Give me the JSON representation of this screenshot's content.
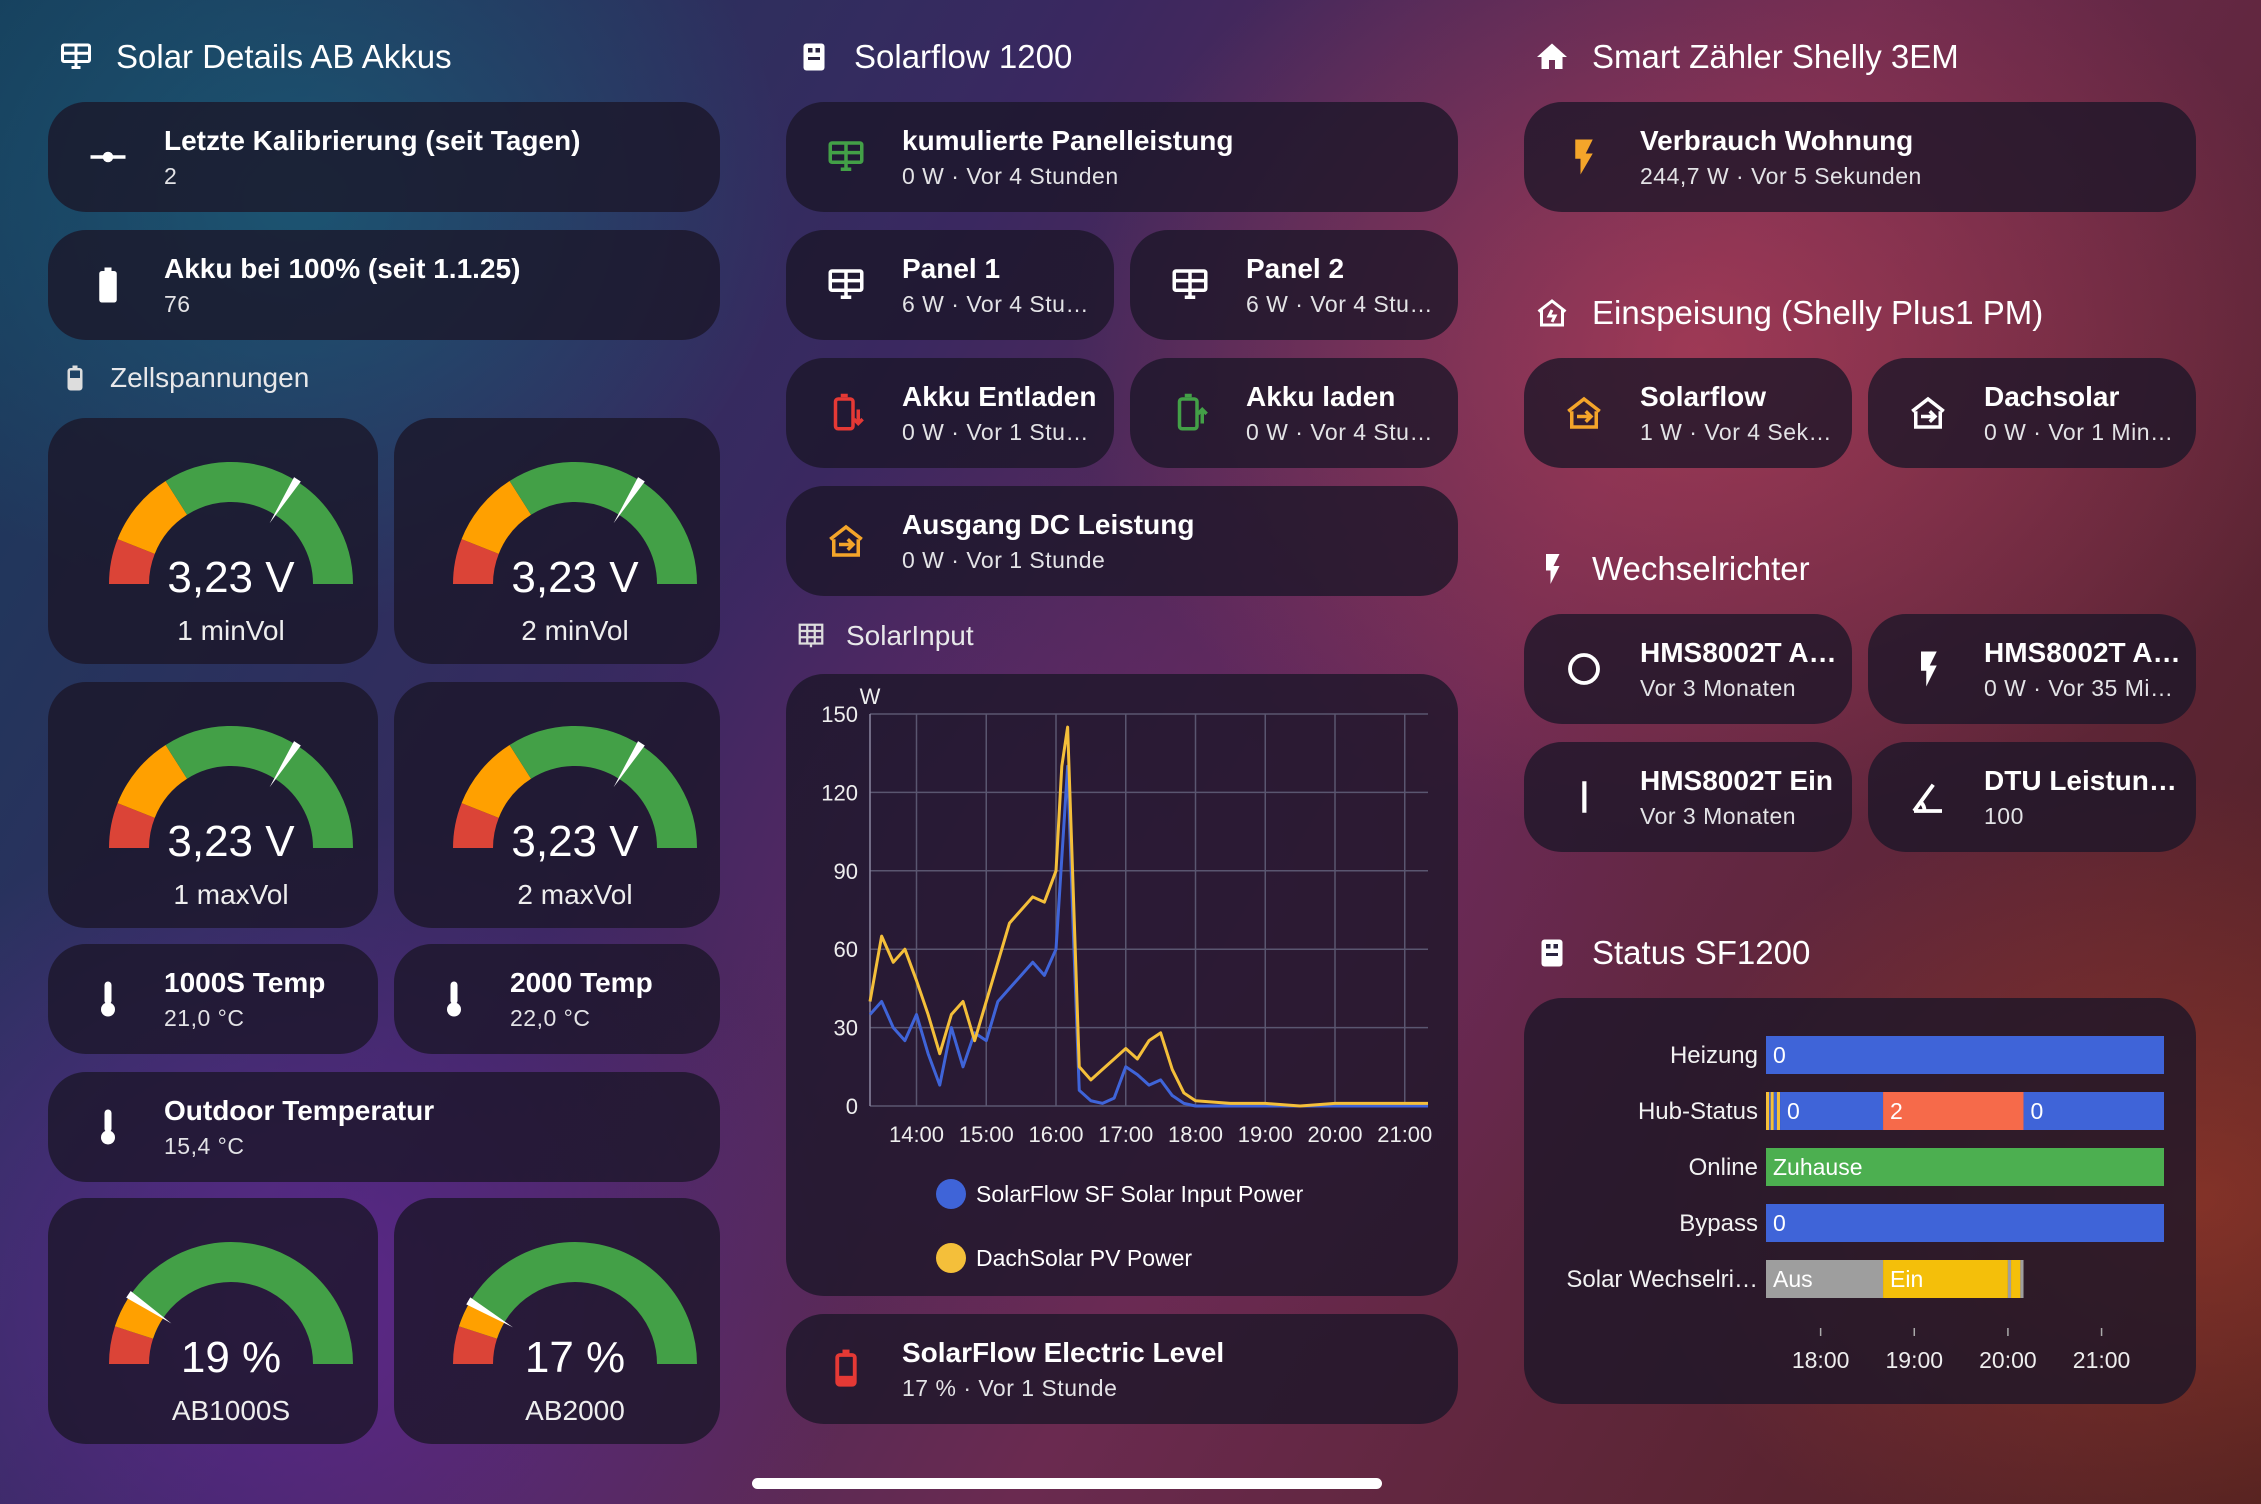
{
  "col1": {
    "header": "Solar Details AB Akkus",
    "calib": {
      "title": "Letzte Kalibrierung (seit Tagen)",
      "value": "2"
    },
    "akku100": {
      "title": "Akku bei 100% (seit 1.1.25)",
      "value": "76"
    },
    "cells_header": "Zellspannungen",
    "gauges": [
      {
        "value": "3,23 V",
        "label": "1 minVol",
        "fraction": 0.68
      },
      {
        "value": "3,23 V",
        "label": "2 minVol",
        "fraction": 0.68
      },
      {
        "value": "3,23 V",
        "label": "1 maxVol",
        "fraction": 0.68
      },
      {
        "value": "3,23 V",
        "label": "2 maxVol",
        "fraction": 0.68
      }
    ],
    "temp1000": {
      "title": "1000S Temp",
      "value": "21,0 °C"
    },
    "temp2000": {
      "title": "2000 Temp",
      "value": "22,0 °C"
    },
    "outdoor": {
      "title": "Outdoor Temperatur",
      "value": "15,4 °C"
    },
    "soc": [
      {
        "value": "19 %",
        "label": "AB1000S",
        "fraction": 0.19
      },
      {
        "value": "17 %",
        "label": "AB2000",
        "fraction": 0.17
      }
    ]
  },
  "col2": {
    "header": "Solarflow 1200",
    "panel_sum": {
      "title": "kumulierte Panelleistung",
      "value": "0 W · Vor 4 Stunden"
    },
    "panel1": {
      "title": "Panel 1",
      "value": "6 W · Vor 4 Stu…"
    },
    "panel2": {
      "title": "Panel 2",
      "value": "6 W · Vor 4 Stu…"
    },
    "discharge": {
      "title": "Akku Entladen",
      "value": "0 W · Vor 1 Stu…"
    },
    "charge": {
      "title": "Akku laden",
      "value": "0 W · Vor 4 Stu…"
    },
    "output_dc": {
      "title": "Ausgang DC Leistung",
      "value": "0 W · Vor 1 Stunde"
    },
    "solar_input_header": "SolarInput",
    "electric_level": {
      "title": "SolarFlow Electric Level",
      "value": "17 % · Vor 1 Stunde"
    }
  },
  "col3": {
    "header": "Smart Zähler Shelly 3EM",
    "consumption": {
      "title": "Verbrauch Wohnung",
      "value": "244,7 W · Vor 5 Sekunden"
    },
    "feed_header": "Einspeisung (Shelly Plus1 PM)",
    "solarflow": {
      "title": "Solarflow",
      "value": "1 W · Vor 4 Sek…"
    },
    "dachsolar": {
      "title": "Dachsolar",
      "value": "0 W · Vor 1 Min…"
    },
    "inverter_header": "Wechselrichter",
    "inv1": {
      "title": "HMS8002T A…",
      "value": "Vor 3 Monaten"
    },
    "inv2": {
      "title": "HMS8002T A…",
      "value": "0 W · Vor 35 Mi…"
    },
    "inv3": {
      "title": "HMS8002T Ein",
      "value": "Vor 3 Monaten"
    },
    "dtu": {
      "title": "DTU Leistung…",
      "value": "100"
    },
    "status_header": "Status SF1200"
  },
  "colors": {
    "blue": "#3f64d8",
    "yellow": "#f4bf3a",
    "green": "#43a047",
    "orange": "#f68d3a",
    "red": "#e53935",
    "gauge_orange": "#ffa000",
    "gauge_red": "#db4437"
  },
  "chart_data": [
    {
      "type": "line",
      "unit": "W",
      "ylabel": "W",
      "ylim": [
        0,
        150
      ],
      "yticks": [
        "0",
        "30",
        "60",
        "90",
        "120",
        "150"
      ],
      "xlim": [
        "13:20",
        "21:20"
      ],
      "xticks": [
        "14:00",
        "15:00",
        "16:00",
        "17:00",
        "18:00",
        "19:00",
        "20:00",
        "21:00"
      ],
      "legend_position": "bottom",
      "series": [
        {
          "name": "SolarFlow SF Solar Input Power",
          "color": "#3f64d8",
          "x": [
            "13:20",
            "13:30",
            "13:40",
            "13:50",
            "14:00",
            "14:10",
            "14:20",
            "14:30",
            "14:40",
            "14:50",
            "15:00",
            "15:10",
            "15:20",
            "15:30",
            "15:40",
            "15:50",
            "16:00",
            "16:05",
            "16:10",
            "16:15",
            "16:20",
            "16:30",
            "16:40",
            "16:50",
            "17:00",
            "17:10",
            "17:20",
            "17:30",
            "17:40",
            "17:50",
            "18:00",
            "18:30",
            "19:00",
            "19:30",
            "20:00",
            "20:30",
            "21:00",
            "21:20"
          ],
          "y": [
            35,
            40,
            30,
            25,
            35,
            20,
            8,
            30,
            15,
            28,
            25,
            40,
            45,
            50,
            55,
            50,
            60,
            95,
            130,
            65,
            6,
            2,
            1,
            3,
            15,
            12,
            8,
            10,
            4,
            1,
            0,
            0,
            0,
            0,
            0,
            0,
            0,
            0
          ]
        },
        {
          "name": "DachSolar PV Power",
          "color": "#f4bf3a",
          "x": [
            "13:20",
            "13:30",
            "13:40",
            "13:50",
            "14:00",
            "14:10",
            "14:20",
            "14:30",
            "14:40",
            "14:50",
            "15:00",
            "15:10",
            "15:20",
            "15:30",
            "15:40",
            "15:50",
            "16:00",
            "16:05",
            "16:10",
            "16:15",
            "16:20",
            "16:30",
            "16:40",
            "16:50",
            "17:00",
            "17:10",
            "17:20",
            "17:30",
            "17:40",
            "17:50",
            "18:00",
            "18:30",
            "19:00",
            "19:30",
            "20:00",
            "20:30",
            "21:00",
            "21:20"
          ],
          "y": [
            40,
            65,
            55,
            60,
            48,
            35,
            20,
            35,
            40,
            25,
            40,
            55,
            70,
            75,
            80,
            78,
            90,
            130,
            145,
            80,
            15,
            10,
            14,
            18,
            22,
            18,
            25,
            28,
            14,
            5,
            2,
            1,
            1,
            0,
            1,
            1,
            1,
            1
          ]
        }
      ]
    },
    {
      "type": "timeline",
      "xlim": [
        "17:25",
        "21:40"
      ],
      "xticks": [
        "18:00",
        "19:00",
        "20:00",
        "21:00"
      ],
      "rows": [
        {
          "label": "Heizung",
          "segments": [
            {
              "from": "17:25",
              "to": "21:40",
              "text": "0",
              "color": "#3f64d8"
            }
          ]
        },
        {
          "label": "Hub-Status",
          "segments": [
            {
              "from": "17:25",
              "to": "17:27",
              "text": "",
              "color": "#f4bf3a"
            },
            {
              "from": "17:27",
              "to": "17:28",
              "text": "",
              "color": "#3f64d8"
            },
            {
              "from": "17:28",
              "to": "17:30",
              "text": "",
              "color": "#f4bf3a"
            },
            {
              "from": "17:30",
              "to": "17:32",
              "text": "",
              "color": "#3f64d8"
            },
            {
              "from": "17:32",
              "to": "17:34",
              "text": "",
              "color": "#f4bf3a"
            },
            {
              "from": "17:34",
              "to": "18:40",
              "text": "0",
              "color": "#3f64d8"
            },
            {
              "from": "18:40",
              "to": "20:10",
              "text": "2",
              "color": "#f66a4a"
            },
            {
              "from": "20:10",
              "to": "21:40",
              "text": "0",
              "color": "#3f64d8"
            }
          ]
        },
        {
          "label": "Online",
          "segments": [
            {
              "from": "17:25",
              "to": "21:40",
              "text": "Zuhause",
              "color": "#4caf50"
            }
          ]
        },
        {
          "label": "Bypass",
          "segments": [
            {
              "from": "17:25",
              "to": "21:40",
              "text": "0",
              "color": "#3f64d8"
            }
          ]
        },
        {
          "label": "Solar Wechselri…",
          "segments": [
            {
              "from": "17:25",
              "to": "18:40",
              "text": "Aus",
              "color": "#9e9e9e"
            },
            {
              "from": "18:40",
              "to": "20:00",
              "text": "Ein",
              "color": "#f4bf0a"
            },
            {
              "from": "20:00",
              "to": "20:02",
              "text": "",
              "color": "#9e9e9e"
            },
            {
              "from": "20:02",
              "to": "20:08",
              "text": "",
              "color": "#f4bf0a"
            },
            {
              "from": "20:08",
              "to": "20:10",
              "text": "",
              "color": "#9e9e9e"
            }
          ]
        }
      ]
    }
  ]
}
